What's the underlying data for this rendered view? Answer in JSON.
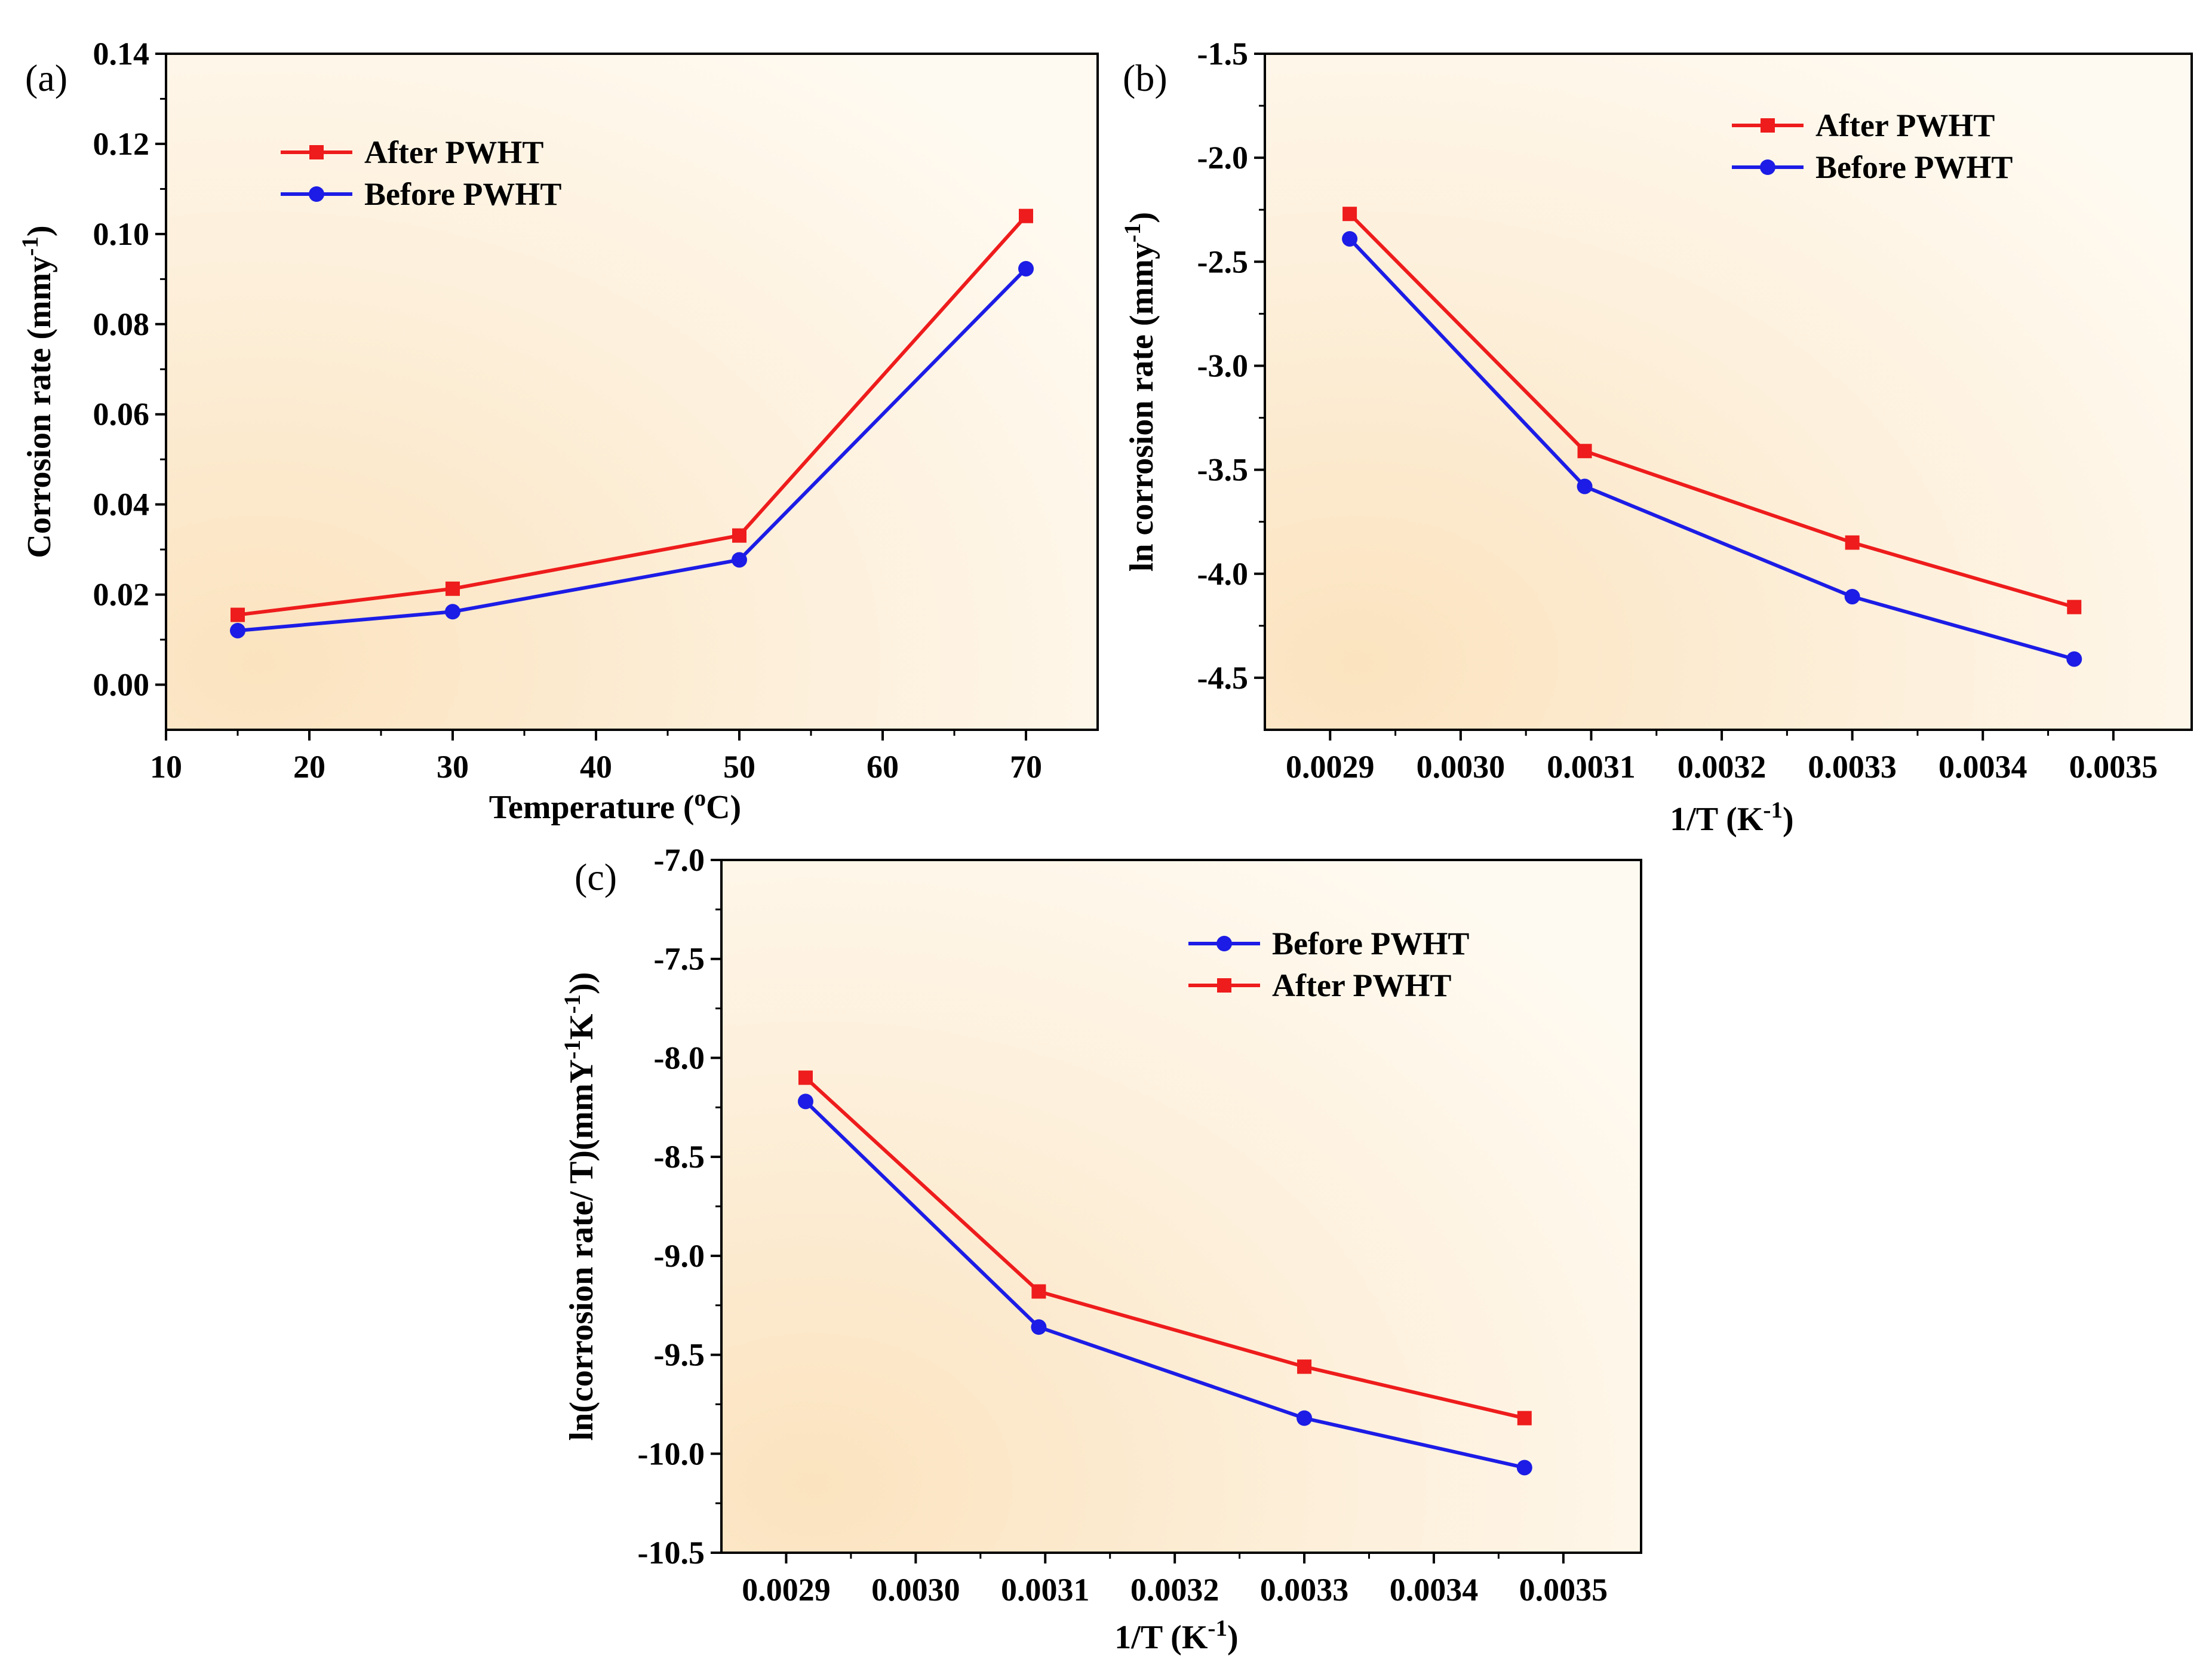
{
  "chart_data": [
    {
      "panel": "(a)",
      "type": "line",
      "xlabel": "Temperature (°C)",
      "ylabel": "Corrosion rate (mmy⁻¹)",
      "xlim": [
        10,
        75
      ],
      "ylim": [
        -0.01,
        0.14
      ],
      "xticks": [
        "10",
        "20",
        "30",
        "40",
        "50",
        "60",
        "70"
      ],
      "yticks": [
        "0.00",
        "0.02",
        "0.04",
        "0.06",
        "0.08",
        "0.10",
        "0.12",
        "0.14"
      ],
      "legend": [
        "After PWHT",
        "Before PWHT"
      ],
      "series": [
        {
          "name": "After PWHT",
          "color": "#ee1c1c",
          "marker": "square",
          "x": [
            15,
            30,
            50,
            70
          ],
          "y": [
            0.0155,
            0.0213,
            0.0331,
            0.104
          ]
        },
        {
          "name": "Before PWHT",
          "color": "#1c1ce6",
          "marker": "circle",
          "x": [
            15,
            30,
            50,
            70
          ],
          "y": [
            0.012,
            0.0162,
            0.0277,
            0.0923
          ]
        }
      ]
    },
    {
      "panel": "(b)",
      "type": "line",
      "xlabel": "1/T (K⁻¹)",
      "ylabel": "ln corrosion rate (mmy⁻¹)",
      "xlim": [
        0.00285,
        0.00356
      ],
      "ylim": [
        -4.75,
        -1.5
      ],
      "xticks": [
        "0.0029",
        "0.0030",
        "0.0031",
        "0.0032",
        "0.0033",
        "0.0034",
        "0.0035"
      ],
      "yticks": [
        "-4.5",
        "-4.0",
        "-3.5",
        "-3.0",
        "-2.5",
        "-2.0",
        "-1.5"
      ],
      "legend": [
        "After PWHT",
        "Before PWHT"
      ],
      "series": [
        {
          "name": "After PWHT",
          "color": "#ee1c1c",
          "marker": "square",
          "x": [
            0.002915,
            0.003095,
            0.0033,
            0.00347
          ],
          "y": [
            -2.27,
            -3.41,
            -3.85,
            -4.16
          ]
        },
        {
          "name": "Before PWHT",
          "color": "#1c1ce6",
          "marker": "circle",
          "x": [
            0.002915,
            0.003095,
            0.0033,
            0.00347
          ],
          "y": [
            -2.39,
            -3.58,
            -4.11,
            -4.41
          ]
        }
      ]
    },
    {
      "panel": "(c)",
      "type": "line",
      "xlabel": "1/T (K⁻¹)",
      "ylabel": "ln(corrosion rate/ T)(mmY⁻¹K⁻¹))",
      "xlim": [
        0.00285,
        0.00356
      ],
      "ylim": [
        -10.5,
        -7.0
      ],
      "xticks": [
        "0.0029",
        "0.0030",
        "0.0031",
        "0.0032",
        "0.0033",
        "0.0034",
        "0.0035"
      ],
      "yticks": [
        "-10.5",
        "-10.0",
        "-9.5",
        "-9.0",
        "-8.5",
        "-8.0",
        "-7.5",
        "-7.0"
      ],
      "legend": [
        "Before PWHT",
        "After PWHT"
      ],
      "series": [
        {
          "name": "Before PWHT",
          "color": "#1c1ce6",
          "marker": "circle",
          "x": [
            0.002915,
            0.003095,
            0.0033,
            0.00347
          ],
          "y": [
            -8.22,
            -9.36,
            -9.82,
            -10.07
          ]
        },
        {
          "name": "After PWHT",
          "color": "#ee1c1c",
          "marker": "square",
          "x": [
            0.002915,
            0.003095,
            0.0033,
            0.00347
          ],
          "y": [
            -8.1,
            -9.18,
            -9.56,
            -9.82
          ]
        }
      ]
    }
  ]
}
